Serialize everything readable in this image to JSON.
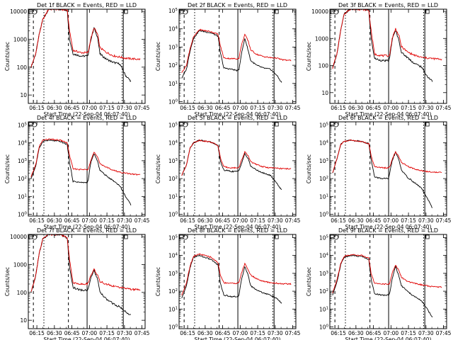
{
  "window_title": "",
  "colors": {
    "events": "#000000",
    "lld": "#e00000",
    "axes": "#000000",
    "background": "#ffffff"
  },
  "chart_data": [
    {
      "type": "line",
      "title": "Det 1f BLACK = Events, RED = LLD",
      "ylabel": "Counts/sec",
      "xlabel": "Start Time (22-Sep-04 06:07:40)",
      "yscale": "log",
      "ylim": [
        5,
        12000
      ],
      "ytick_labels": [
        "10",
        "100",
        "1000",
        "10000"
      ],
      "xtick_labels": [
        "06:15",
        "06:30",
        "06:45",
        "07:00",
        "07:15",
        "07:30",
        "07:45"
      ],
      "x": [
        "06:10",
        "06:14",
        "06:17",
        "06:20",
        "06:25",
        "06:35",
        "06:41",
        "06:43",
        "06:46",
        "06:53",
        "06:58",
        "06:59",
        "07:01",
        "07:04",
        "07:07",
        "07:09",
        "07:14",
        "07:20",
        "07:26",
        "07:31",
        "07:36",
        "07:44"
      ],
      "series": [
        {
          "name": "Events",
          "values": [
            100,
            300,
            1500,
            5000,
            12000,
            12000,
            11000,
            1000,
            300,
            250,
            250,
            300,
            900,
            2500,
            1200,
            300,
            200,
            150,
            130,
            50,
            30,
            null
          ]
        },
        {
          "name": "LLD",
          "values": [
            100,
            300,
            1500,
            5000,
            12000,
            12000,
            11000,
            2000,
            400,
            330,
            330,
            350,
            1000,
            2600,
            1500,
            500,
            350,
            260,
            230,
            210,
            200,
            190
          ]
        }
      ]
    },
    {
      "type": "line",
      "title": "Det 2f BLACK = Events, RED = LLD",
      "ylabel": "Counts/sec",
      "xlabel": "Start Time (22-Sep-04 06:07:40)",
      "yscale": "log",
      "ylim": [
        0.8,
        120000
      ],
      "ytick_labels": [
        "10^0",
        "10^1",
        "10^2",
        "10^3",
        "10^4",
        "10^5"
      ],
      "xtick_labels": [
        "06:15",
        "06:30",
        "06:45",
        "07:00",
        "07:15",
        "07:30",
        "07:45"
      ],
      "x": [
        "06:10",
        "06:14",
        "06:17",
        "06:20",
        "06:25",
        "06:35",
        "06:41",
        "06:43",
        "06:46",
        "06:53",
        "06:58",
        "06:59",
        "07:01",
        "07:04",
        "07:07",
        "07:09",
        "07:14",
        "07:20",
        "07:26",
        "07:31",
        "07:36",
        "07:44"
      ],
      "series": [
        {
          "name": "Events",
          "values": [
            20,
            60,
            600,
            3000,
            8000,
            6000,
            4000,
            500,
            70,
            60,
            50,
            60,
            400,
            3000,
            600,
            180,
            100,
            70,
            60,
            30,
            10,
            null
          ]
        },
        {
          "name": "LLD",
          "values": [
            40,
            100,
            800,
            3500,
            9000,
            7000,
            5000,
            1200,
            250,
            230,
            230,
            250,
            1200,
            5000,
            2000,
            700,
            400,
            300,
            260,
            250,
            200,
            180
          ]
        }
      ]
    },
    {
      "type": "line",
      "title": "Det 3f BLACK = Events, RED = LLD",
      "ylabel": "Counts/sec",
      "xlabel": "Start Time (22-Sep-04 06:07:40)",
      "yscale": "log",
      "ylim": [
        4,
        12000
      ],
      "ytick_labels": [
        "10",
        "100",
        "1000",
        "10000"
      ],
      "xtick_labels": [
        "06:15",
        "06:30",
        "06:45",
        "07:00",
        "07:15",
        "07:30",
        "07:45"
      ],
      "x": [
        "06:10",
        "06:14",
        "06:17",
        "06:20",
        "06:25",
        "06:35",
        "06:41",
        "06:43",
        "06:46",
        "06:53",
        "06:58",
        "06:59",
        "07:01",
        "07:04",
        "07:07",
        "07:09",
        "07:14",
        "07:20",
        "07:26",
        "07:31",
        "07:36",
        "07:44"
      ],
      "series": [
        {
          "name": "Events",
          "values": [
            80,
            300,
            2000,
            8000,
            12000,
            12000,
            11000,
            1000,
            180,
            150,
            150,
            200,
            900,
            2000,
            800,
            300,
            200,
            120,
            90,
            40,
            25,
            null
          ]
        },
        {
          "name": "LLD",
          "values": [
            80,
            300,
            2000,
            8000,
            12000,
            12000,
            11000,
            2000,
            260,
            230,
            230,
            260,
            1000,
            2300,
            1200,
            500,
            320,
            240,
            200,
            190,
            180,
            170
          ]
        }
      ]
    },
    {
      "type": "line",
      "title": "Det 4f BLACK = Events, RED = LLD",
      "ylabel": "Counts/sec",
      "xlabel": "Start Time (22-Sep-04 06:07:40)",
      "yscale": "log",
      "ylim": [
        0.8,
        150000
      ],
      "ytick_labels": [
        "10^0",
        "10^1",
        "10^2",
        "10^3",
        "10^4",
        "10^5"
      ],
      "xtick_labels": [
        "06:15",
        "06:30",
        "06:45",
        "07:00",
        "07:15",
        "07:30",
        "07:45"
      ],
      "x": [
        "06:10",
        "06:14",
        "06:17",
        "06:20",
        "06:25",
        "06:35",
        "06:41",
        "06:43",
        "06:46",
        "06:53",
        "06:58",
        "06:59",
        "07:01",
        "07:04",
        "07:07",
        "07:09",
        "07:14",
        "07:20",
        "07:26",
        "07:31",
        "07:36",
        "07:44"
      ],
      "series": [
        {
          "name": "Events",
          "values": [
            100,
            500,
            5000,
            12000,
            14000,
            12000,
            8000,
            800,
            70,
            60,
            60,
            80,
            700,
            2500,
            900,
            300,
            150,
            80,
            40,
            10,
            3,
            null
          ]
        },
        {
          "name": "LLD",
          "values": [
            120,
            600,
            6000,
            14000,
            16000,
            14000,
            10000,
            2000,
            350,
            320,
            320,
            350,
            1000,
            3000,
            1500,
            700,
            450,
            300,
            230,
            200,
            180,
            160
          ]
        }
      ]
    },
    {
      "type": "line",
      "title": "Det 5f BLACK = Events, RED = LLD",
      "ylabel": "Counts/sec",
      "xlabel": "Start Time (22-Sep-04 06:07:40)",
      "yscale": "log",
      "ylim": [
        0.8,
        150000
      ],
      "ytick_labels": [
        "10^0",
        "10^1",
        "10^2",
        "10^3",
        "10^4",
        "10^5"
      ],
      "xtick_labels": [
        "06:15",
        "06:30",
        "06:45",
        "07:00",
        "07:15",
        "07:30",
        "07:45"
      ],
      "x": [
        "06:10",
        "06:14",
        "06:17",
        "06:20",
        "06:25",
        "06:35",
        "06:41",
        "06:43",
        "06:46",
        "06:53",
        "06:58",
        "06:59",
        "07:01",
        "07:04",
        "07:07",
        "07:09",
        "07:14",
        "07:20",
        "07:26",
        "07:31",
        "07:36",
        "07:44"
      ],
      "series": [
        {
          "name": "Events",
          "values": [
            150,
            600,
            5000,
            10000,
            14000,
            11000,
            7000,
            900,
            300,
            250,
            250,
            280,
            700,
            2500,
            1200,
            500,
            300,
            200,
            150,
            60,
            20,
            null
          ]
        },
        {
          "name": "LLD",
          "values": [
            150,
            600,
            5000,
            10000,
            14000,
            11000,
            7000,
            1500,
            450,
            400,
            400,
            420,
            1000,
            3000,
            1800,
            900,
            600,
            450,
            400,
            380,
            360,
            350
          ]
        }
      ]
    },
    {
      "type": "line",
      "title": "Det 6f BLACK = Events, RED = LLD",
      "ylabel": "Counts/sec",
      "xlabel": "Start Time (22-Sep-04 06:07:40)",
      "yscale": "log",
      "ylim": [
        0.8,
        150000
      ],
      "ytick_labels": [
        "10^0",
        "10^1",
        "10^2",
        "10^3",
        "10^4",
        "10^5"
      ],
      "xtick_labels": [
        "06:15",
        "06:30",
        "06:45",
        "07:00",
        "07:15",
        "07:30",
        "07:45"
      ],
      "x": [
        "06:10",
        "06:14",
        "06:17",
        "06:20",
        "06:25",
        "06:35",
        "06:41",
        "06:43",
        "06:46",
        "06:53",
        "06:58",
        "06:59",
        "07:01",
        "07:04",
        "07:07",
        "07:09",
        "07:14",
        "07:20",
        "07:26",
        "07:31",
        "07:36",
        "07:44"
      ],
      "series": [
        {
          "name": "Events",
          "values": [
            200,
            1500,
            8000,
            12000,
            14000,
            12000,
            9000,
            1200,
            120,
            100,
            100,
            200,
            1000,
            3000,
            1000,
            300,
            120,
            60,
            30,
            8,
            2,
            null
          ]
        },
        {
          "name": "LLD",
          "values": [
            200,
            1500,
            8000,
            12000,
            14000,
            12000,
            9000,
            2000,
            450,
            400,
            400,
            450,
            1200,
            3200,
            1600,
            800,
            500,
            350,
            280,
            250,
            230,
            220
          ]
        }
      ]
    },
    {
      "type": "line",
      "title": "Det 7f BLACK = Events, RED = LLD",
      "ylabel": "Counts/sec",
      "xlabel": "Start Time (22-Sep-04 06:07:40)",
      "yscale": "log",
      "ylim": [
        5,
        12000
      ],
      "ytick_labels": [
        "10",
        "100",
        "1000",
        "10000"
      ],
      "xtick_labels": [
        "06:15",
        "06:30",
        "06:45",
        "07:00",
        "07:15",
        "07:30",
        "07:45"
      ],
      "x": [
        "06:10",
        "06:14",
        "06:17",
        "06:20",
        "06:25",
        "06:35",
        "06:41",
        "06:43",
        "06:46",
        "06:53",
        "06:58",
        "06:59",
        "07:01",
        "07:04",
        "07:07",
        "07:09",
        "07:14",
        "07:20",
        "07:26",
        "07:31",
        "07:36",
        "07:44"
      ],
      "series": [
        {
          "name": "Events",
          "values": [
            100,
            400,
            2500,
            8000,
            12000,
            12000,
            9000,
            800,
            150,
            120,
            120,
            140,
            300,
            600,
            300,
            100,
            60,
            40,
            30,
            20,
            15,
            null
          ]
        },
        {
          "name": "LLD",
          "values": [
            100,
            400,
            2500,
            8000,
            12000,
            12000,
            9000,
            1500,
            220,
            200,
            200,
            210,
            400,
            700,
            400,
            250,
            200,
            170,
            150,
            140,
            130,
            120
          ]
        }
      ]
    },
    {
      "type": "line",
      "title": "Det 8f BLACK = Events, RED = LLD",
      "ylabel": "Counts/sec",
      "xlabel": "Start Time (22-Sep-04 06:07:40)",
      "yscale": "log",
      "ylim": [
        0.8,
        150000
      ],
      "ytick_labels": [
        "10^0",
        "10^1",
        "10^2",
        "10^3",
        "10^4",
        "10^5"
      ],
      "xtick_labels": [
        "06:15",
        "06:30",
        "06:45",
        "07:00",
        "07:15",
        "07:30",
        "07:45"
      ],
      "x": [
        "06:10",
        "06:14",
        "06:17",
        "06:20",
        "06:25",
        "06:35",
        "06:41",
        "06:43",
        "06:46",
        "06:53",
        "06:58",
        "06:59",
        "07:01",
        "07:04",
        "07:07",
        "07:09",
        "07:14",
        "07:20",
        "07:26",
        "07:31",
        "07:36",
        "07:44"
      ],
      "series": [
        {
          "name": "Events",
          "values": [
            40,
            200,
            2000,
            8000,
            10000,
            6000,
            3000,
            300,
            60,
            50,
            50,
            60,
            400,
            2500,
            700,
            200,
            120,
            80,
            60,
            40,
            20,
            null
          ]
        },
        {
          "name": "LLD",
          "values": [
            60,
            300,
            2500,
            9000,
            12000,
            8000,
            4000,
            800,
            300,
            280,
            280,
            300,
            1000,
            3500,
            1500,
            800,
            500,
            350,
            300,
            280,
            260,
            250
          ]
        }
      ]
    },
    {
      "type": "line",
      "title": "Det 9f BLACK = Events, RED = LLD",
      "ylabel": "Counts/sec",
      "xlabel": "Start Time (22-Sep-04 06:07:40)",
      "yscale": "log",
      "ylim": [
        0.8,
        150000
      ],
      "ytick_labels": [
        "10^0",
        "10^1",
        "10^2",
        "10^3",
        "10^4",
        "10^5"
      ],
      "xtick_labels": [
        "06:15",
        "06:30",
        "06:45",
        "07:00",
        "07:15",
        "07:30",
        "07:45"
      ],
      "x": [
        "06:10",
        "06:14",
        "06:17",
        "06:20",
        "06:25",
        "06:35",
        "06:41",
        "06:43",
        "06:46",
        "06:53",
        "06:58",
        "06:59",
        "07:01",
        "07:04",
        "07:07",
        "07:09",
        "07:14",
        "07:20",
        "07:26",
        "07:31",
        "07:36",
        "07:44"
      ],
      "series": [
        {
          "name": "Events",
          "values": [
            60,
            400,
            3000,
            8000,
            10000,
            9000,
            6000,
            500,
            70,
            60,
            60,
            80,
            500,
            2500,
            600,
            200,
            100,
            50,
            30,
            10,
            3,
            null
          ]
        },
        {
          "name": "LLD",
          "values": [
            80,
            500,
            3500,
            9000,
            11000,
            10000,
            7000,
            1000,
            280,
            250,
            250,
            280,
            1000,
            3000,
            1300,
            600,
            350,
            280,
            230,
            200,
            180,
            170
          ]
        }
      ]
    }
  ]
}
